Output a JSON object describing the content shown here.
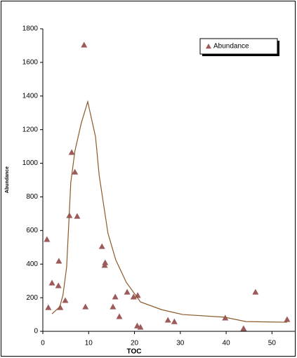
{
  "chart_data": {
    "type": "scatter",
    "x_label": "TOC",
    "y_label": "Abundance",
    "xlim": [
      0,
      55
    ],
    "xticks": [
      0,
      10,
      20,
      30,
      40,
      50
    ],
    "ylim": [
      0,
      1800
    ],
    "yticks": [
      0,
      200,
      400,
      600,
      800,
      1000,
      1200,
      1400,
      1600,
      1800
    ],
    "legend": "top-right",
    "series": [
      {
        "name": "Abundance",
        "type": "scatter",
        "marker": "triangle",
        "color": "#9c5a5a",
        "x": [
          0.9,
          1.2,
          2,
          3.4,
          3.5,
          3.8,
          4.9,
          5.8,
          6.3,
          7,
          7.5,
          9,
          9.3,
          12.9,
          13.5,
          13.6,
          15.3,
          15.8,
          16.7,
          18.4,
          19.8,
          20.7,
          20.6,
          21.3,
          27.3,
          28.7,
          39.8,
          43.8,
          46.4,
          53.3
        ],
        "values": [
          547,
          142,
          288,
          272,
          418,
          142,
          184,
          689,
          1065,
          948,
          685,
          1704,
          146,
          505,
          393,
          409,
          146,
          205,
          88,
          234,
          205,
          214,
          33,
          25,
          67,
          58,
          80,
          17,
          234,
          71
        ]
      },
      {
        "type": "line",
        "color": "#8b5a2b",
        "x": [
          2,
          3.7,
          4.4,
          5.2,
          6.1,
          7,
          8.4,
          9.8,
          11.5,
          12.3,
          14.2,
          15.9,
          18.2,
          21.3,
          25.9,
          30.5,
          39.7,
          44.3,
          53.3
        ],
        "values": [
          104,
          146,
          217,
          384,
          885,
          1073,
          1240,
          1366,
          1157,
          927,
          585,
          426,
          292,
          175,
          129,
          100,
          84,
          58,
          54
        ]
      }
    ]
  }
}
